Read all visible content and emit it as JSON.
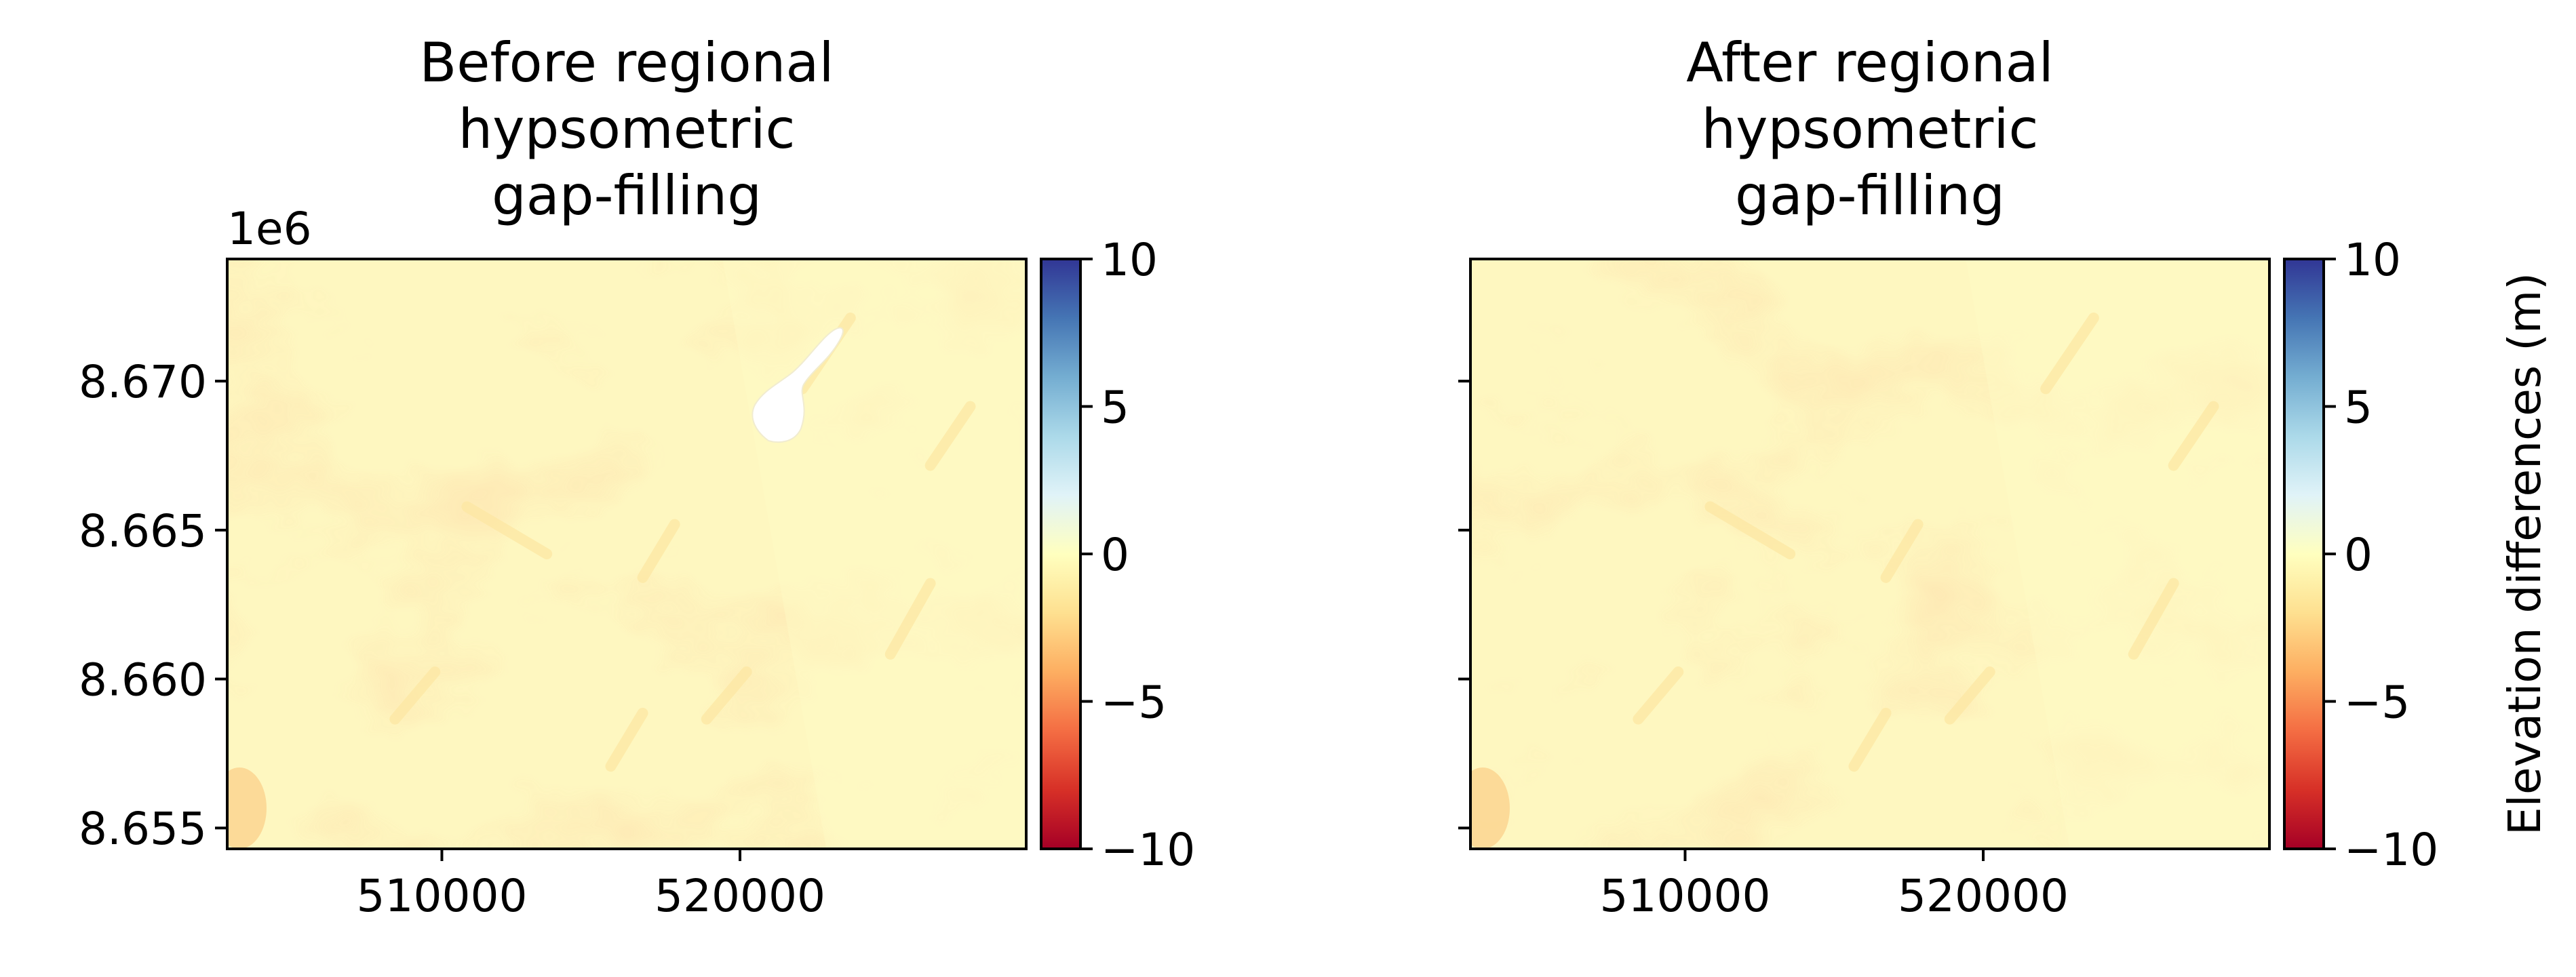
{
  "chart_data": [
    {
      "type": "heatmap",
      "title": "Before regional\nhypsometric\ngap-filling",
      "xlim": [
        502800,
        529600
      ],
      "ylim": [
        8654300,
        8674100
      ],
      "x_ticks": [
        510000,
        520000
      ],
      "x_tick_labels": [
        "510000",
        "520000"
      ],
      "y_ticks": [
        8655000,
        8660000,
        8665000,
        8670000
      ],
      "y_tick_labels": [
        "8.655",
        "8.660",
        "8.665",
        "8.670"
      ],
      "y_offset_label": "1e6",
      "value_range_estimate": [
        -3,
        0.5
      ],
      "typical_value": -0.8,
      "has_data_gap": true,
      "colorbar": {
        "cmap": "RdYlBu",
        "vmin": -10,
        "vmax": 10,
        "ticks": [
          -10,
          -5,
          0,
          5,
          10
        ],
        "tick_labels": [
          "−10",
          "−5",
          "0",
          "5",
          "10"
        ],
        "label": ""
      }
    },
    {
      "type": "heatmap",
      "title": "After regional\nhypsometric\ngap-filling",
      "xlim": [
        502800,
        529600
      ],
      "ylim": [
        8654300,
        8674100
      ],
      "x_ticks": [
        510000,
        520000
      ],
      "x_tick_labels": [
        "510000",
        "520000"
      ],
      "y_ticks": [
        8655000,
        8660000,
        8665000,
        8670000
      ],
      "y_tick_labels": [],
      "value_range_estimate": [
        -3,
        0.5
      ],
      "typical_value": -0.8,
      "has_data_gap": false,
      "colorbar": {
        "cmap": "RdYlBu",
        "vmin": -10,
        "vmax": 10,
        "ticks": [
          -10,
          -5,
          0,
          5,
          10
        ],
        "tick_labels": [
          "−10",
          "−5",
          "0",
          "5",
          "10"
        ],
        "label": "Elevation differences (m)"
      }
    }
  ],
  "colors": {
    "field_base": "#fef7c0",
    "field_light": "#fffbc6",
    "field_dark": "#fde7a2",
    "field_strong": "#fbd590",
    "gap": "#ffffff",
    "axis": "#000000",
    "cmap_stops": [
      "#a50026",
      "#d73027",
      "#f46d43",
      "#fdae61",
      "#fee090",
      "#ffffbf",
      "#e0f3f8",
      "#abd9e9",
      "#74add1",
      "#4575b4",
      "#313695"
    ]
  }
}
